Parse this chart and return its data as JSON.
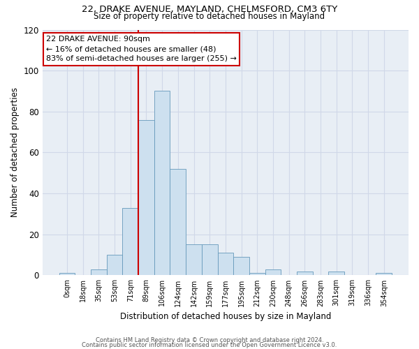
{
  "title1": "22, DRAKE AVENUE, MAYLAND, CHELMSFORD, CM3 6TY",
  "title2": "Size of property relative to detached houses in Mayland",
  "xlabel": "Distribution of detached houses by size in Mayland",
  "ylabel": "Number of detached properties",
  "bar_labels": [
    "0sqm",
    "18sqm",
    "35sqm",
    "53sqm",
    "71sqm",
    "89sqm",
    "106sqm",
    "124sqm",
    "142sqm",
    "159sqm",
    "177sqm",
    "195sqm",
    "212sqm",
    "230sqm",
    "248sqm",
    "266sqm",
    "283sqm",
    "301sqm",
    "319sqm",
    "336sqm",
    "354sqm"
  ],
  "bar_values": [
    1,
    0,
    3,
    10,
    33,
    76,
    90,
    52,
    15,
    15,
    11,
    9,
    1,
    3,
    0,
    2,
    0,
    2,
    0,
    0,
    1
  ],
  "bar_color": "#cde0ef",
  "bar_edge_color": "#6699bb",
  "vline_color": "#cc0000",
  "vline_pos": 5,
  "annotation_text": "22 DRAKE AVENUE: 90sqm\n← 16% of detached houses are smaller (48)\n83% of semi-detached houses are larger (255) →",
  "annotation_box_color": "white",
  "annotation_box_edge_color": "#cc0000",
  "ylim": [
    0,
    120
  ],
  "yticks": [
    0,
    20,
    40,
    60,
    80,
    100,
    120
  ],
  "footer1": "Contains HM Land Registry data © Crown copyright and database right 2024.",
  "footer2": "Contains public sector information licensed under the Open Government Licence v3.0.",
  "bg_color": "white",
  "grid_color": "#d0d8e8"
}
